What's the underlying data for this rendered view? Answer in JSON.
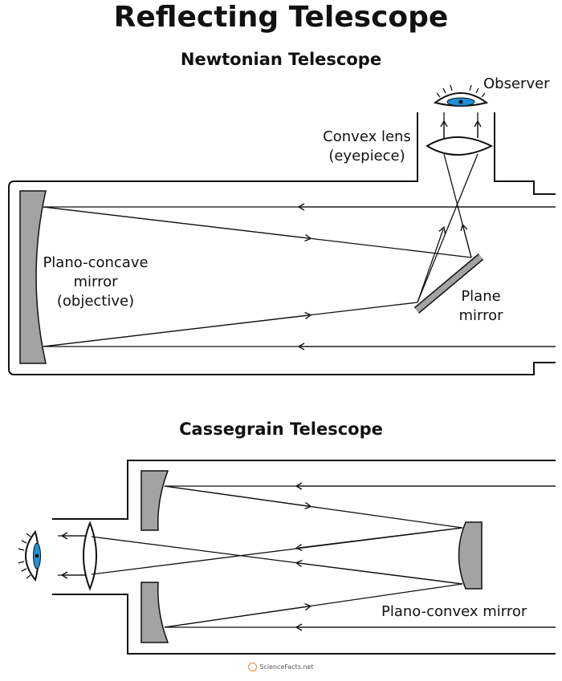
{
  "title": "Reflecting Telescope",
  "newtonian": {
    "heading": "Newtonian Telescope",
    "observer": "Observer",
    "lens_line1": "Convex lens",
    "lens_line2": "(eyepiece)",
    "objective_line1": "Plano-concave",
    "objective_line2": "mirror",
    "objective_line3": "(objective)",
    "plane_line1": "Plane",
    "plane_line2": "mirror"
  },
  "cassegrain": {
    "heading": "Cassegrain Telescope",
    "secondary_label": "Plano-convex mirror"
  },
  "footer": {
    "brand": "ScienceFacts.net"
  },
  "colors": {
    "mirror": "#a3a3a3",
    "eye_iris": "#1f8fd6",
    "line": "#111111"
  }
}
